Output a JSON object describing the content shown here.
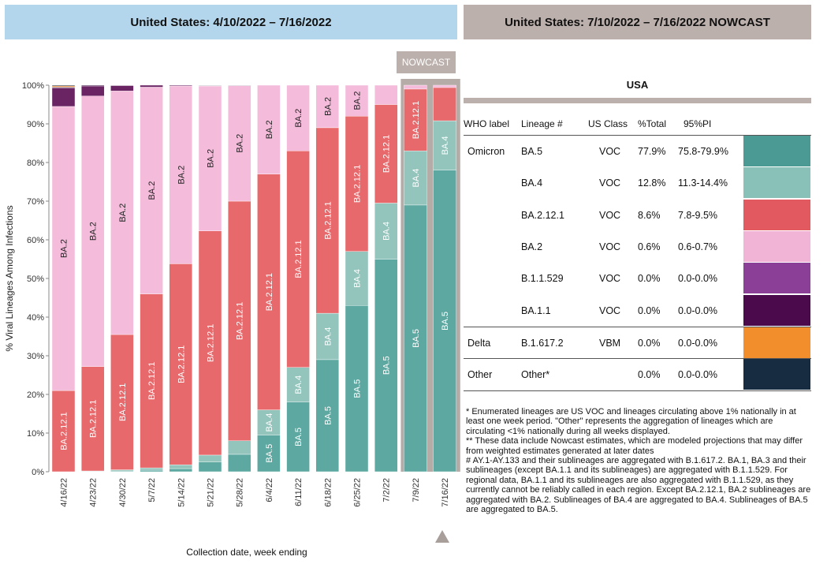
{
  "header_left": "United States: 4/10/2022 – 7/16/2022",
  "header_right": "United States: 7/10/2022 – 7/16/2022 NOWCAST",
  "nowcast_label": "NOWCAST",
  "chart_data": {
    "type": "bar",
    "stacked": true,
    "ylabel": "% Viral Lineages Among Infections",
    "xlabel": "Collection date, week ending",
    "ylim": [
      0,
      100
    ],
    "y_ticks": [
      "0%",
      "10%",
      "20%",
      "30%",
      "40%",
      "50%",
      "60%",
      "70%",
      "80%",
      "90%",
      "100%"
    ],
    "categories": [
      "4/16/22",
      "4/23/22",
      "4/30/22",
      "5/7/22",
      "5/14/22",
      "5/21/22",
      "5/28/22",
      "6/4/22",
      "6/11/22",
      "6/18/22",
      "6/25/22",
      "7/2/22",
      "7/9/22",
      "7/16/22"
    ],
    "nowcast_categories": [
      "7/9/22",
      "7/16/22"
    ],
    "series": [
      {
        "name": "BA.5",
        "color": "#5ea8a2",
        "values": [
          0.0,
          0.1,
          0.2,
          0.4,
          0.8,
          2.5,
          4.5,
          9.5,
          18.0,
          29.0,
          43.0,
          55.0,
          69.0,
          78.0
        ]
      },
      {
        "name": "BA.4",
        "color": "#94c5bd",
        "values": [
          0.0,
          0.1,
          0.3,
          0.6,
          1.0,
          1.8,
          3.5,
          6.5,
          9.0,
          12.0,
          14.0,
          14.5,
          14.0,
          12.8
        ]
      },
      {
        "name": "BA.2.12.1",
        "color": "#e8696c",
        "values": [
          21.0,
          27.0,
          35.0,
          45.0,
          52.0,
          58.0,
          62.0,
          61.0,
          56.0,
          48.0,
          35.0,
          25.5,
          16.0,
          8.6
        ]
      },
      {
        "name": "BA.2",
        "color": "#f4bcda",
        "values": [
          73.5,
          70.0,
          63.0,
          53.5,
          46.0,
          37.5,
          29.9,
          23.0,
          17.0,
          11.0,
          8.0,
          5.0,
          1.0,
          0.6
        ]
      },
      {
        "name": "B.1.1.529",
        "color": "#6a2363",
        "values": [
          4.8,
          2.6,
          1.4,
          0.5,
          0.2,
          0.1,
          0.0,
          0.0,
          0.0,
          0.0,
          0.0,
          0.0,
          0.0,
          0.0
        ]
      },
      {
        "name": "BA.1.1",
        "color": "#3c1040",
        "values": [
          0.2,
          0.2,
          0.1,
          0.0,
          0.0,
          0.0,
          0.0,
          0.0,
          0.0,
          0.0,
          0.0,
          0.0,
          0.0,
          0.0
        ]
      },
      {
        "name": "B.1.617.2",
        "color": "#f08b2c",
        "values": [
          0.3,
          0.0,
          0.0,
          0.0,
          0.0,
          0.0,
          0.0,
          0.0,
          0.0,
          0.0,
          0.0,
          0.0,
          0.0,
          0.0
        ]
      },
      {
        "name": "Other*",
        "color": "#1e2e3e",
        "values": [
          0.2,
          0.0,
          0.0,
          0.0,
          0.0,
          0.1,
          0.1,
          0.0,
          0.0,
          0.0,
          0.0,
          0.0,
          0.0,
          0.0
        ]
      }
    ],
    "bar_labels": [
      {
        "bar": 0,
        "series": "BA.2.12.1",
        "text": "BA.2.12.1"
      },
      {
        "bar": 0,
        "series": "BA.2",
        "text": "BA.2"
      },
      {
        "bar": 1,
        "series": "BA.2.12.1",
        "text": "BA.2.12.1"
      },
      {
        "bar": 1,
        "series": "BA.2",
        "text": "BA.2"
      },
      {
        "bar": 2,
        "series": "BA.2.12.1",
        "text": "BA.2.12.1"
      },
      {
        "bar": 2,
        "series": "BA.2",
        "text": "BA.2"
      },
      {
        "bar": 3,
        "series": "BA.2.12.1",
        "text": "BA.2.12.1"
      },
      {
        "bar": 3,
        "series": "BA.2",
        "text": "BA.2"
      },
      {
        "bar": 4,
        "series": "BA.2.12.1",
        "text": "BA.2.12.1"
      },
      {
        "bar": 4,
        "series": "BA.2",
        "text": "BA.2"
      },
      {
        "bar": 5,
        "series": "BA.2.12.1",
        "text": "BA.2.12.1"
      },
      {
        "bar": 5,
        "series": "BA.2",
        "text": "BA.2"
      },
      {
        "bar": 6,
        "series": "BA.2.12.1",
        "text": "BA.2.12.1"
      },
      {
        "bar": 6,
        "series": "BA.2",
        "text": "BA.2"
      },
      {
        "bar": 7,
        "series": "BA.5",
        "text": "BA.5"
      },
      {
        "bar": 7,
        "series": "BA.4",
        "text": "BA.4"
      },
      {
        "bar": 7,
        "series": "BA.2.12.1",
        "text": "BA.2.12.1"
      },
      {
        "bar": 7,
        "series": "BA.2",
        "text": "BA.2"
      },
      {
        "bar": 8,
        "series": "BA.5",
        "text": "BA.5"
      },
      {
        "bar": 8,
        "series": "BA.4",
        "text": "BA.4"
      },
      {
        "bar": 8,
        "series": "BA.2.12.1",
        "text": "BA.2.12.1"
      },
      {
        "bar": 8,
        "series": "BA.2",
        "text": "BA.2"
      },
      {
        "bar": 9,
        "series": "BA.5",
        "text": "BA.5"
      },
      {
        "bar": 9,
        "series": "BA.4",
        "text": "BA.4"
      },
      {
        "bar": 9,
        "series": "BA.2.12.1",
        "text": "BA.2.12.1"
      },
      {
        "bar": 9,
        "series": "BA.2",
        "text": "BA.2"
      },
      {
        "bar": 10,
        "series": "BA.5",
        "text": "BA.5"
      },
      {
        "bar": 10,
        "series": "BA.4",
        "text": "BA.4"
      },
      {
        "bar": 10,
        "series": "BA.2.12.1",
        "text": "BA.2.12.1"
      },
      {
        "bar": 10,
        "series": "BA.2",
        "text": "BA.2"
      },
      {
        "bar": 11,
        "series": "BA.5",
        "text": "BA.5"
      },
      {
        "bar": 11,
        "series": "BA.4",
        "text": "BA.4"
      },
      {
        "bar": 11,
        "series": "BA.2.12.1",
        "text": "BA.2.12.1"
      },
      {
        "bar": 12,
        "series": "BA.5",
        "text": "BA.5"
      },
      {
        "bar": 12,
        "series": "BA.4",
        "text": "BA.4"
      },
      {
        "bar": 12,
        "series": "BA.2.12.1",
        "text": "BA.2.12.1"
      },
      {
        "bar": 13,
        "series": "BA.5",
        "text": "BA.5"
      },
      {
        "bar": 13,
        "series": "BA.4",
        "text": "BA.4"
      }
    ]
  },
  "table": {
    "title": "USA",
    "headers": [
      "WHO label",
      "Lineage #",
      "US Class",
      "%Total",
      "95%PI"
    ],
    "rows": [
      {
        "who": "Omicron",
        "lineage": "BA.5",
        "class": "VOC",
        "total": "77.9%",
        "pi": "75.8-79.9%",
        "color": "#4b9a94"
      },
      {
        "who": "",
        "lineage": "BA.4",
        "class": "VOC",
        "total": "12.8%",
        "pi": "11.3-14.4%",
        "color": "#89c0b8"
      },
      {
        "who": "",
        "lineage": "BA.2.12.1",
        "class": "VOC",
        "total": "8.6%",
        "pi": "7.8-9.5%",
        "color": "#e25a5f"
      },
      {
        "who": "",
        "lineage": "BA.2",
        "class": "VOC",
        "total": "0.6%",
        "pi": "0.6-0.7%",
        "color": "#f1b4d6"
      },
      {
        "who": "",
        "lineage": "B.1.1.529",
        "class": "VOC",
        "total": "0.0%",
        "pi": "0.0-0.0%",
        "color": "#8b3f96"
      },
      {
        "who": "",
        "lineage": "BA.1.1",
        "class": "VOC",
        "total": "0.0%",
        "pi": "0.0-0.0%",
        "color": "#4b0a4c"
      },
      {
        "who": "Delta",
        "lineage": "B.1.617.2",
        "class": "VBM",
        "total": "0.0%",
        "pi": "0.0-0.0%",
        "color": "#f28e2b"
      },
      {
        "who": "Other",
        "lineage": "Other*",
        "class": "",
        "total": "0.0%",
        "pi": "0.0-0.0%",
        "color": "#172b41"
      }
    ]
  },
  "notes": [
    "*      Enumerated lineages are US VOC and lineages circulating above 1% nationally in at least one week period. \"Other\" represents the aggregation of lineages which are circulating <1% nationally during all weeks displayed.",
    "**      These data include Nowcast estimates, which are modeled projections that may differ from weighted estimates generated at later dates",
    "#      AY.1-AY.133 and their sublineages are aggregated with B.1.617.2. BA.1, BA.3 and their sublineages (except BA.1.1 and its sublineages) are aggregated with B.1.1.529. For regional data, BA.1.1 and its sublineages are also aggregated with B.1.1.529, as they currently cannot be reliably called in each region. Except BA.2.12.1, BA.2 sublineages are aggregated with BA.2. Sublineages of BA.4 are aggregated to BA.4. Sublineages of BA.5 are aggregated to BA.5."
  ]
}
